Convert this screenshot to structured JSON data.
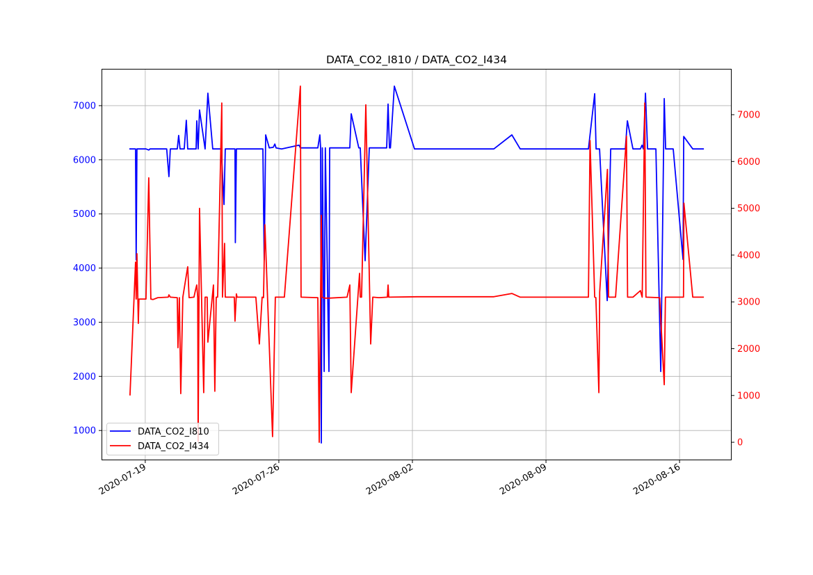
{
  "chart_data": {
    "type": "line",
    "title": "DATA_CO2_I810 / DATA_CO2_I434",
    "xlabel": "",
    "ylabel": "",
    "xlim": [
      "2020-07-16 17:00",
      "2020-08-18 17:30"
    ],
    "x_ticks": [
      "2020-07-19",
      "2020-07-26",
      "2020-08-02",
      "2020-08-09",
      "2020-08-16"
    ],
    "grid": true,
    "legend_position": "lower-left",
    "axes": {
      "left": {
        "ylim": [
          450,
          7680
        ],
        "ticks": [
          1000,
          2000,
          3000,
          4000,
          5000,
          6000,
          7000
        ],
        "color": "#0000ff"
      },
      "right": {
        "ylim": [
          -385,
          7980
        ],
        "ticks": [
          0,
          1000,
          2000,
          3000,
          4000,
          5000,
          6000,
          7000
        ],
        "color": "#ff0000"
      }
    },
    "series": [
      {
        "name": "DATA_CO2_I810",
        "axis": "left",
        "color": "#0000ff",
        "points": [
          [
            "2020-07-18 04:00",
            6200
          ],
          [
            "2020-07-18 11:45",
            6200
          ],
          [
            "2020-07-18 12:36",
            4150
          ],
          [
            "2020-07-18 13:30",
            6200
          ],
          [
            "2020-07-19 01:00",
            6200
          ],
          [
            "2020-07-19 04:24",
            6180
          ],
          [
            "2020-07-19 06:00",
            6200
          ],
          [
            "2020-07-20 03:00",
            6200
          ],
          [
            "2020-07-20 05:45",
            5690
          ],
          [
            "2020-07-20 07:30",
            6200
          ],
          [
            "2020-07-20 16:15",
            6200
          ],
          [
            "2020-07-20 18:00",
            6450
          ],
          [
            "2020-07-20 19:45",
            6200
          ],
          [
            "2020-07-21 01:00",
            6200
          ],
          [
            "2020-07-21 03:36",
            6730
          ],
          [
            "2020-07-21 05:24",
            6200
          ],
          [
            "2020-07-21 16:00",
            6200
          ],
          [
            "2020-07-21 16:45",
            6720
          ],
          [
            "2020-07-21 18:30",
            6200
          ],
          [
            "2020-07-21 20:15",
            6920
          ],
          [
            "2020-07-22 03:15",
            6200
          ],
          [
            "2020-07-22 06:45",
            7230
          ],
          [
            "2020-07-22 12:54",
            6200
          ],
          [
            "2020-07-22 23:30",
            6200
          ],
          [
            "2020-07-23 03:00",
            5175
          ],
          [
            "2020-07-23 04:36",
            6200
          ],
          [
            "2020-07-23 16:54",
            6200
          ],
          [
            "2020-07-23 17:18",
            4470
          ],
          [
            "2020-07-23 18:36",
            6200
          ],
          [
            "2020-07-25 03:54",
            6200
          ],
          [
            "2020-07-25 05:36",
            4150
          ],
          [
            "2020-07-25 07:24",
            6460
          ],
          [
            "2020-07-25 12:00",
            6220
          ],
          [
            "2020-07-25 17:00",
            6230
          ],
          [
            "2020-07-25 19:00",
            6290
          ],
          [
            "2020-07-25 20:30",
            6220
          ],
          [
            "2020-07-26 03:30",
            6200
          ],
          [
            "2020-07-27 01:24",
            6270
          ],
          [
            "2020-07-27 03:06",
            6220
          ],
          [
            "2020-07-28 01:00",
            6220
          ],
          [
            "2020-07-28 03:36",
            6460
          ],
          [
            "2020-07-28 04:30",
            6220
          ],
          [
            "2020-07-28 05:24",
            770
          ],
          [
            "2020-07-28 06:45",
            6220
          ],
          [
            "2020-07-28 09:00",
            2090
          ],
          [
            "2020-07-28 10:30",
            6220
          ],
          [
            "2020-07-28 15:00",
            2090
          ],
          [
            "2020-07-28 15:54",
            6220
          ],
          [
            "2020-07-29 17:15",
            6220
          ],
          [
            "2020-07-29 19:00",
            6850
          ],
          [
            "2020-07-30 04:36",
            6220
          ],
          [
            "2020-07-30 06:24",
            6220
          ],
          [
            "2020-07-30 12:30",
            4135
          ],
          [
            "2020-07-30 17:45",
            6220
          ],
          [
            "2020-07-31 15:36",
            6220
          ],
          [
            "2020-07-31 17:24",
            7030
          ],
          [
            "2020-07-31 19:06",
            6220
          ],
          [
            "2020-07-31 20:24",
            6220
          ],
          [
            "2020-08-01 01:15",
            7360
          ],
          [
            "2020-08-02 02:36",
            6200
          ],
          [
            "2020-08-02 15:00",
            6200
          ],
          [
            "2020-08-06 06:24",
            6200
          ],
          [
            "2020-08-07 05:06",
            6460
          ],
          [
            "2020-08-07 15:36",
            6200
          ],
          [
            "2020-08-11 05:24",
            6200
          ],
          [
            "2020-08-11 13:15",
            7220
          ],
          [
            "2020-08-11 15:00",
            6200
          ],
          [
            "2020-08-11 19:24",
            6200
          ],
          [
            "2020-08-12 05:00",
            3400
          ],
          [
            "2020-08-12 09:24",
            6200
          ],
          [
            "2020-08-13 03:45",
            6200
          ],
          [
            "2020-08-13 06:24",
            6720
          ],
          [
            "2020-08-13 13:24",
            6200
          ],
          [
            "2020-08-13 22:42",
            6200
          ],
          [
            "2020-08-14 00:45",
            6270
          ],
          [
            "2020-08-14 02:30",
            6200
          ],
          [
            "2020-08-14 05:06",
            7230
          ],
          [
            "2020-08-14 07:45",
            6200
          ],
          [
            "2020-08-14 18:15",
            6200
          ],
          [
            "2020-08-15 00:24",
            2090
          ],
          [
            "2020-08-15 04:45",
            7130
          ],
          [
            "2020-08-15 06:30",
            6200
          ],
          [
            "2020-08-15 16:00",
            6200
          ],
          [
            "2020-08-16 04:24",
            4160
          ],
          [
            "2020-08-16 05:15",
            6430
          ],
          [
            "2020-08-16 16:36",
            6200
          ],
          [
            "2020-08-17 06:36",
            6200
          ]
        ]
      },
      {
        "name": "DATA_CO2_I434",
        "axis": "right",
        "color": "#ff0000",
        "points": [
          [
            "2020-07-18 04:45",
            1000
          ],
          [
            "2020-07-18 11:45",
            3850
          ],
          [
            "2020-07-18 12:36",
            3060
          ],
          [
            "2020-07-18 13:30",
            4030
          ],
          [
            "2020-07-18 15:15",
            2540
          ],
          [
            "2020-07-18 16:06",
            3060
          ],
          [
            "2020-07-19 00:54",
            3060
          ],
          [
            "2020-07-19 04:24",
            5650
          ],
          [
            "2020-07-19 07:00",
            3060
          ],
          [
            "2020-07-19 09:36",
            3050
          ],
          [
            "2020-07-19 15:45",
            3090
          ],
          [
            "2020-07-20 04:54",
            3100
          ],
          [
            "2020-07-20 05:45",
            3150
          ],
          [
            "2020-07-20 07:30",
            3100
          ],
          [
            "2020-07-20 16:15",
            3090
          ],
          [
            "2020-07-20 17:06",
            2020
          ],
          [
            "2020-07-20 18:54",
            3090
          ],
          [
            "2020-07-20 20:36",
            1040
          ],
          [
            "2020-07-20 23:15",
            3100
          ],
          [
            "2020-07-21 05:24",
            3750
          ],
          [
            "2020-07-21 07:06",
            3090
          ],
          [
            "2020-07-21 13:15",
            3100
          ],
          [
            "2020-07-21 15:00",
            3240
          ],
          [
            "2020-07-21 16:45",
            3360
          ],
          [
            "2020-07-21 18:00",
            3100
          ],
          [
            "2020-07-21 18:30",
            20
          ],
          [
            "2020-07-21 20:15",
            5000
          ],
          [
            "2020-07-22 01:30",
            1060
          ],
          [
            "2020-07-22 03:15",
            3100
          ],
          [
            "2020-07-22 05:54",
            3100
          ],
          [
            "2020-07-22 06:45",
            2140
          ],
          [
            "2020-07-22 13:45",
            3360
          ],
          [
            "2020-07-22 15:30",
            1090
          ],
          [
            "2020-07-22 17:15",
            3100
          ],
          [
            "2020-07-22 19:00",
            3100
          ],
          [
            "2020-07-23 00:15",
            7250
          ],
          [
            "2020-07-23 01:06",
            3100
          ],
          [
            "2020-07-23 03:45",
            4250
          ],
          [
            "2020-07-23 04:36",
            3100
          ],
          [
            "2020-07-23 16:00",
            3100
          ],
          [
            "2020-07-23 16:54",
            2590
          ],
          [
            "2020-07-23 18:36",
            3170
          ],
          [
            "2020-07-23 19:30",
            3100
          ],
          [
            "2020-07-24 19:06",
            3100
          ],
          [
            "2020-07-24 23:30",
            2100
          ],
          [
            "2020-07-25 03:00",
            3100
          ],
          [
            "2020-07-25 04:45",
            3090
          ],
          [
            "2020-07-25 06:30",
            4650
          ],
          [
            "2020-07-25 16:06",
            120
          ],
          [
            "2020-07-25 19:36",
            3100
          ],
          [
            "2020-07-26 07:00",
            3100
          ],
          [
            "2020-07-27 03:06",
            7610
          ],
          [
            "2020-07-27 04:00",
            3100
          ],
          [
            "2020-07-28 01:00",
            3090
          ],
          [
            "2020-07-28 02:45",
            0
          ],
          [
            "2020-07-28 05:24",
            4850
          ],
          [
            "2020-07-28 06:15",
            3100
          ],
          [
            "2020-07-28 09:30",
            3080
          ],
          [
            "2020-07-28 15:00",
            3080
          ],
          [
            "2020-07-29 13:45",
            3100
          ],
          [
            "2020-07-29 17:15",
            3360
          ],
          [
            "2020-07-29 19:00",
            1060
          ],
          [
            "2020-07-30 05:30",
            3610
          ],
          [
            "2020-07-30 06:24",
            3100
          ],
          [
            "2020-07-30 08:06",
            3100
          ],
          [
            "2020-07-30 13:24",
            7210
          ],
          [
            "2020-07-30 19:30",
            2100
          ],
          [
            "2020-07-30 22:06",
            3100
          ],
          [
            "2020-07-31 06:00",
            3090
          ],
          [
            "2020-07-31 16:30",
            3100
          ],
          [
            "2020-07-31 17:24",
            3360
          ],
          [
            "2020-07-31 18:15",
            3100
          ],
          [
            "2020-08-02 06:00",
            3110
          ],
          [
            "2020-08-06 06:24",
            3110
          ],
          [
            "2020-08-07 05:06",
            3180
          ],
          [
            "2020-08-07 15:36",
            3100
          ],
          [
            "2020-08-11 05:24",
            3100
          ],
          [
            "2020-08-11 07:24",
            6450
          ],
          [
            "2020-08-11 13:15",
            3100
          ],
          [
            "2020-08-11 14:45",
            3090
          ],
          [
            "2020-08-11 18:30",
            1060
          ],
          [
            "2020-08-11 19:36",
            3210
          ],
          [
            "2020-08-12 05:18",
            5830
          ],
          [
            "2020-08-12 06:45",
            3100
          ],
          [
            "2020-08-12 15:30",
            3100
          ],
          [
            "2020-08-13 05:12",
            6540
          ],
          [
            "2020-08-13 06:36",
            3100
          ],
          [
            "2020-08-13 13:24",
            3100
          ],
          [
            "2020-08-13 22:42",
            3240
          ],
          [
            "2020-08-14 01:00",
            3100
          ],
          [
            "2020-08-14 04:15",
            7250
          ],
          [
            "2020-08-14 05:42",
            3100
          ],
          [
            "2020-08-14 23:00",
            3090
          ],
          [
            "2020-08-15 04:45",
            1230
          ],
          [
            "2020-08-15 06:12",
            3100
          ],
          [
            "2020-08-16 05:00",
            3100
          ],
          [
            "2020-08-16 05:30",
            5110
          ],
          [
            "2020-08-16 16:36",
            3100
          ],
          [
            "2020-08-17 06:36",
            3100
          ]
        ]
      }
    ]
  }
}
